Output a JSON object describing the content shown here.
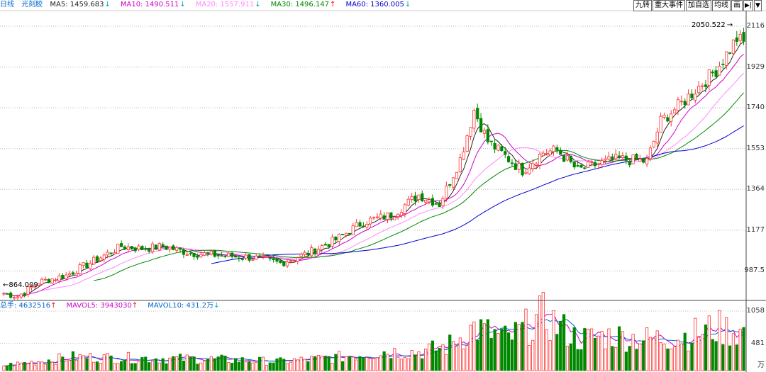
{
  "header": {
    "period": "日线",
    "indicator": "光刻胶",
    "ma": [
      {
        "label": "MA5: 1459.683",
        "dir": "down",
        "color": "#222222"
      },
      {
        "label": "MA10: 1490.511",
        "dir": "down",
        "color": "#cc00cc"
      },
      {
        "label": "MA20: 1557.911",
        "dir": "down",
        "color": "#ff88ff"
      },
      {
        "label": "MA30: 1496.147",
        "dir": "up",
        "color": "#008800"
      },
      {
        "label": "MA60: 1360.005",
        "dir": "down",
        "color": "#0000cc"
      }
    ]
  },
  "toolbar": [
    {
      "label": "九转"
    },
    {
      "label": "重大事件"
    },
    {
      "label": "加自选"
    },
    {
      "label": "均线"
    },
    {
      "label": "画"
    },
    {
      "label": "▶|",
      "icon": "skip-end-icon"
    },
    {
      "label": "▼",
      "icon": "dropdown-arrow-icon"
    }
  ],
  "volume_header": {
    "vol": "总手: 4632516",
    "vol_dir": "up",
    "mavol5": "MAVOL5: 3943030",
    "mavol5_dir": "up",
    "mavol10": "MAVOL10: 431.2万",
    "mavol10_dir": "down"
  },
  "price_axis": [
    "2116",
    "1929",
    "1740",
    "1553",
    "1364",
    "1177",
    "987.5"
  ],
  "volume_axis": [
    "1058",
    "481",
    "万"
  ],
  "markers": {
    "high": "2050.522",
    "low": "864.009"
  },
  "colors": {
    "up": "#ff3232",
    "down": "#008800",
    "grid": "#bbbbbb",
    "arrow_up": "#ff0000",
    "arrow_down": "#00aaaa"
  },
  "chart_data": {
    "type": "candlestick",
    "price_range": [
      864.009,
      2116
    ],
    "volume_range_wan": [
      0,
      1058
    ],
    "anchors": [
      {
        "i": 0,
        "c": 880
      },
      {
        "i": 4,
        "c": 866
      },
      {
        "i": 10,
        "c": 930
      },
      {
        "i": 18,
        "c": 960
      },
      {
        "i": 26,
        "c": 1025
      },
      {
        "i": 34,
        "c": 1090
      },
      {
        "i": 40,
        "c": 1080
      },
      {
        "i": 46,
        "c": 1090
      },
      {
        "i": 54,
        "c": 1060
      },
      {
        "i": 62,
        "c": 1050
      },
      {
        "i": 72,
        "c": 1040
      },
      {
        "i": 80,
        "c": 1015
      },
      {
        "i": 88,
        "c": 1060
      },
      {
        "i": 96,
        "c": 1120
      },
      {
        "i": 104,
        "c": 1200
      },
      {
        "i": 112,
        "c": 1230
      },
      {
        "i": 120,
        "c": 1320
      },
      {
        "i": 126,
        "c": 1280
      },
      {
        "i": 132,
        "c": 1480
      },
      {
        "i": 136,
        "c": 1700
      },
      {
        "i": 140,
        "c": 1560
      },
      {
        "i": 146,
        "c": 1480
      },
      {
        "i": 150,
        "c": 1430
      },
      {
        "i": 156,
        "c": 1510
      },
      {
        "i": 160,
        "c": 1520
      },
      {
        "i": 166,
        "c": 1430
      },
      {
        "i": 172,
        "c": 1460
      },
      {
        "i": 178,
        "c": 1480
      },
      {
        "i": 186,
        "c": 1470
      },
      {
        "i": 190,
        "c": 1650
      },
      {
        "i": 196,
        "c": 1730
      },
      {
        "i": 202,
        "c": 1820
      },
      {
        "i": 206,
        "c": 1880
      },
      {
        "i": 212,
        "c": 2020
      },
      {
        "i": 214,
        "c": 2000
      }
    ],
    "volume_anchors": [
      {
        "i": 0,
        "v": 90
      },
      {
        "i": 20,
        "v": 240
      },
      {
        "i": 40,
        "v": 220
      },
      {
        "i": 60,
        "v": 200
      },
      {
        "i": 80,
        "v": 160
      },
      {
        "i": 96,
        "v": 230
      },
      {
        "i": 110,
        "v": 340
      },
      {
        "i": 120,
        "v": 330
      },
      {
        "i": 128,
        "v": 420
      },
      {
        "i": 136,
        "v": 760
      },
      {
        "i": 146,
        "v": 560
      },
      {
        "i": 156,
        "v": 970
      },
      {
        "i": 166,
        "v": 560
      },
      {
        "i": 176,
        "v": 620
      },
      {
        "i": 186,
        "v": 560
      },
      {
        "i": 196,
        "v": 600
      },
      {
        "i": 206,
        "v": 760
      },
      {
        "i": 214,
        "v": 680
      }
    ],
    "count": 215
  }
}
